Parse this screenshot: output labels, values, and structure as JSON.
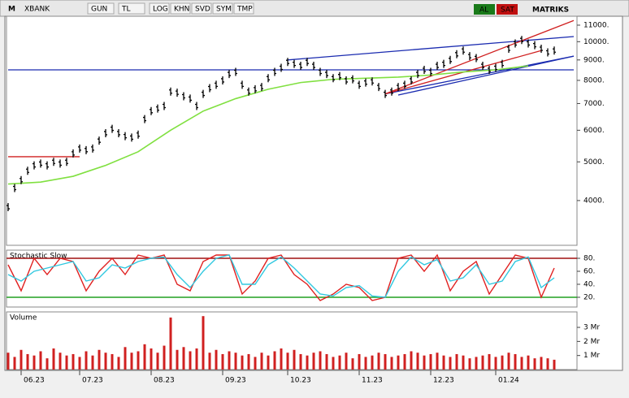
{
  "toolbar": {
    "logo": "M",
    "symbol": "XBANK",
    "buttons": [
      "GUN",
      "TL",
      "LOG",
      "KHN",
      "SVD",
      "SYM",
      "TMP"
    ],
    "buy": "AL",
    "sell": "SAT",
    "brand": "MATRIKS"
  },
  "chart_data": [
    {
      "type": "stock",
      "log_scale": true,
      "color": "#000000",
      "categories": [
        null,
        null,
        "06.23",
        null,
        null,
        null,
        null,
        null,
        null,
        null,
        null,
        "07.23",
        null,
        null,
        null,
        null,
        null,
        null,
        null,
        null,
        null,
        null,
        "08.23",
        null,
        null,
        null,
        null,
        null,
        null,
        null,
        null,
        null,
        null,
        "09.23",
        null,
        null,
        null,
        null,
        null,
        null,
        null,
        null,
        null,
        "10.23",
        null,
        null,
        null,
        null,
        null,
        null,
        null,
        null,
        null,
        null,
        "11.23",
        null,
        null,
        null,
        null,
        null,
        null,
        null,
        null,
        null,
        null,
        "12.23",
        null,
        null,
        null,
        null,
        null,
        null,
        null,
        null,
        null,
        "01.24",
        null,
        null,
        null,
        null,
        null,
        null,
        null,
        null,
        null
      ],
      "values": [
        3850,
        4300,
        4500,
        4750,
        4900,
        4950,
        4900,
        5000,
        4950,
        5000,
        5250,
        5400,
        5350,
        5400,
        5650,
        5900,
        6050,
        5900,
        5800,
        5750,
        5850,
        6400,
        6700,
        6800,
        6900,
        7500,
        7450,
        7300,
        7200,
        6900,
        7400,
        7650,
        7800,
        8000,
        8300,
        8400,
        7800,
        7500,
        7600,
        7700,
        8100,
        8400,
        8600,
        8900,
        8800,
        8700,
        8900,
        8700,
        8400,
        8300,
        8100,
        8200,
        8000,
        8050,
        7800,
        7900,
        7950,
        7700,
        7400,
        7500,
        7700,
        7800,
        8000,
        8300,
        8500,
        8400,
        8700,
        8800,
        9000,
        9300,
        9500,
        9200,
        9100,
        8700,
        8500,
        8600,
        8800,
        9600,
        9900,
        10100,
        9900,
        9800,
        9600,
        9400,
        9500
      ],
      "overlay": {
        "color": "#80e040",
        "x": [
          0,
          5,
          10,
          15,
          20,
          25,
          30,
          35,
          40,
          45,
          50,
          55,
          60,
          65,
          70,
          75,
          80
        ],
        "values": [
          4400,
          4450,
          4600,
          4900,
          5300,
          6000,
          6700,
          7200,
          7600,
          7900,
          8050,
          8100,
          8150,
          8250,
          8400,
          8500,
          8700
        ]
      },
      "trend_lines": [
        {
          "color": "#1a2bb0",
          "from": [
            0,
            8500
          ],
          "to": [
            87,
            8500
          ]
        },
        {
          "color": "#d02020",
          "from": [
            0,
            5150
          ],
          "to": [
            11,
            5150
          ]
        },
        {
          "color": "#1a2bb0",
          "from": [
            43,
            9000
          ],
          "to": [
            87,
            10300
          ]
        },
        {
          "color": "#1a2bb0",
          "from": [
            58,
            7400
          ],
          "to": [
            87,
            9200
          ]
        },
        {
          "color": "#d02020",
          "from": [
            58,
            7400
          ],
          "to": [
            87,
            11300
          ]
        },
        {
          "color": "#d02020",
          "from": [
            58,
            7400
          ],
          "to": [
            82,
            9500
          ]
        },
        {
          "color": "#1a2bb0",
          "from": [
            60,
            7350
          ],
          "to": [
            87,
            9200
          ]
        }
      ],
      "ylim": [
        3090,
        11580
      ],
      "yticks": [
        {
          "value": 4000,
          "label": "4000."
        },
        {
          "value": 5000,
          "label": "5000."
        },
        {
          "value": 6000,
          "label": "6000."
        },
        {
          "value": 7000,
          "label": "7000."
        },
        {
          "value": 8000,
          "label": "8000."
        },
        {
          "value": 9000,
          "label": "9000."
        },
        {
          "value": 10000,
          "label": "10000."
        },
        {
          "value": 11000,
          "label": "11000."
        }
      ]
    },
    {
      "type": "line",
      "title": "Stochastic Slow",
      "ylim": [
        5,
        92.5
      ],
      "yticks": [
        {
          "value": 20,
          "label": "20."
        },
        {
          "value": 40,
          "label": "40."
        },
        {
          "value": 60,
          "label": "60."
        },
        {
          "value": 80,
          "label": "80."
        }
      ],
      "levels": [
        {
          "value": 80,
          "color": "#a01010"
        },
        {
          "value": 20,
          "color": "#20a020"
        }
      ],
      "x": [
        0,
        2,
        4,
        6,
        8,
        10,
        12,
        14,
        16,
        18,
        20,
        22,
        24,
        26,
        28,
        30,
        32,
        34,
        36,
        38,
        40,
        42,
        44,
        46,
        48,
        50,
        52,
        54,
        56,
        58,
        60,
        62,
        64,
        66,
        68,
        70,
        72,
        74,
        76,
        78,
        80,
        82,
        84
      ],
      "series": [
        {
          "color": "#e02020",
          "values": [
            70,
            30,
            80,
            55,
            80,
            75,
            30,
            60,
            80,
            55,
            85,
            80,
            85,
            40,
            30,
            75,
            85,
            85,
            25,
            45,
            80,
            85,
            55,
            40,
            15,
            25,
            40,
            35,
            15,
            20,
            80,
            85,
            60,
            85,
            30,
            60,
            75,
            25,
            55,
            85,
            80,
            20,
            65
          ]
        },
        {
          "color": "#30c8e0",
          "values": [
            55,
            45,
            60,
            65,
            70,
            75,
            45,
            50,
            70,
            65,
            75,
            80,
            82,
            55,
            35,
            60,
            80,
            85,
            40,
            40,
            70,
            82,
            65,
            45,
            25,
            22,
            35,
            38,
            22,
            20,
            60,
            82,
            70,
            78,
            45,
            50,
            70,
            40,
            45,
            75,
            82,
            35,
            50
          ]
        }
      ]
    },
    {
      "type": "bar",
      "title": "Volume",
      "color": "#d02020",
      "ylim": [
        0,
        4.1
      ],
      "yticks": [
        {
          "value": 1,
          "label": "1 Mr"
        },
        {
          "value": 2,
          "label": "2 Mr"
        },
        {
          "value": 3,
          "label": "3 Mr"
        }
      ],
      "values": [
        1.2,
        0.9,
        1.4,
        1.1,
        1.0,
        1.3,
        0.8,
        1.5,
        1.2,
        1.0,
        1.1,
        0.9,
        1.3,
        1.0,
        1.4,
        1.2,
        1.1,
        0.9,
        1.6,
        1.2,
        1.3,
        1.8,
        1.5,
        1.2,
        1.7,
        3.7,
        1.4,
        1.6,
        1.3,
        1.5,
        3.8,
        1.2,
        1.4,
        1.1,
        1.3,
        1.2,
        1.0,
        1.1,
        0.9,
        1.2,
        1.0,
        1.3,
        1.5,
        1.2,
        1.4,
        1.1,
        1.0,
        1.2,
        1.3,
        1.1,
        0.9,
        1.0,
        1.2,
        0.8,
        1.1,
        0.9,
        1.0,
        1.2,
        1.1,
        0.9,
        1.0,
        1.1,
        1.3,
        1.2,
        1.0,
        1.1,
        1.2,
        1.0,
        0.9,
        1.1,
        1.0,
        0.8,
        0.9,
        1.0,
        1.1,
        0.9,
        1.0,
        1.2,
        1.1,
        0.9,
        1.0,
        0.8,
        0.9,
        0.8,
        0.7
      ]
    }
  ]
}
